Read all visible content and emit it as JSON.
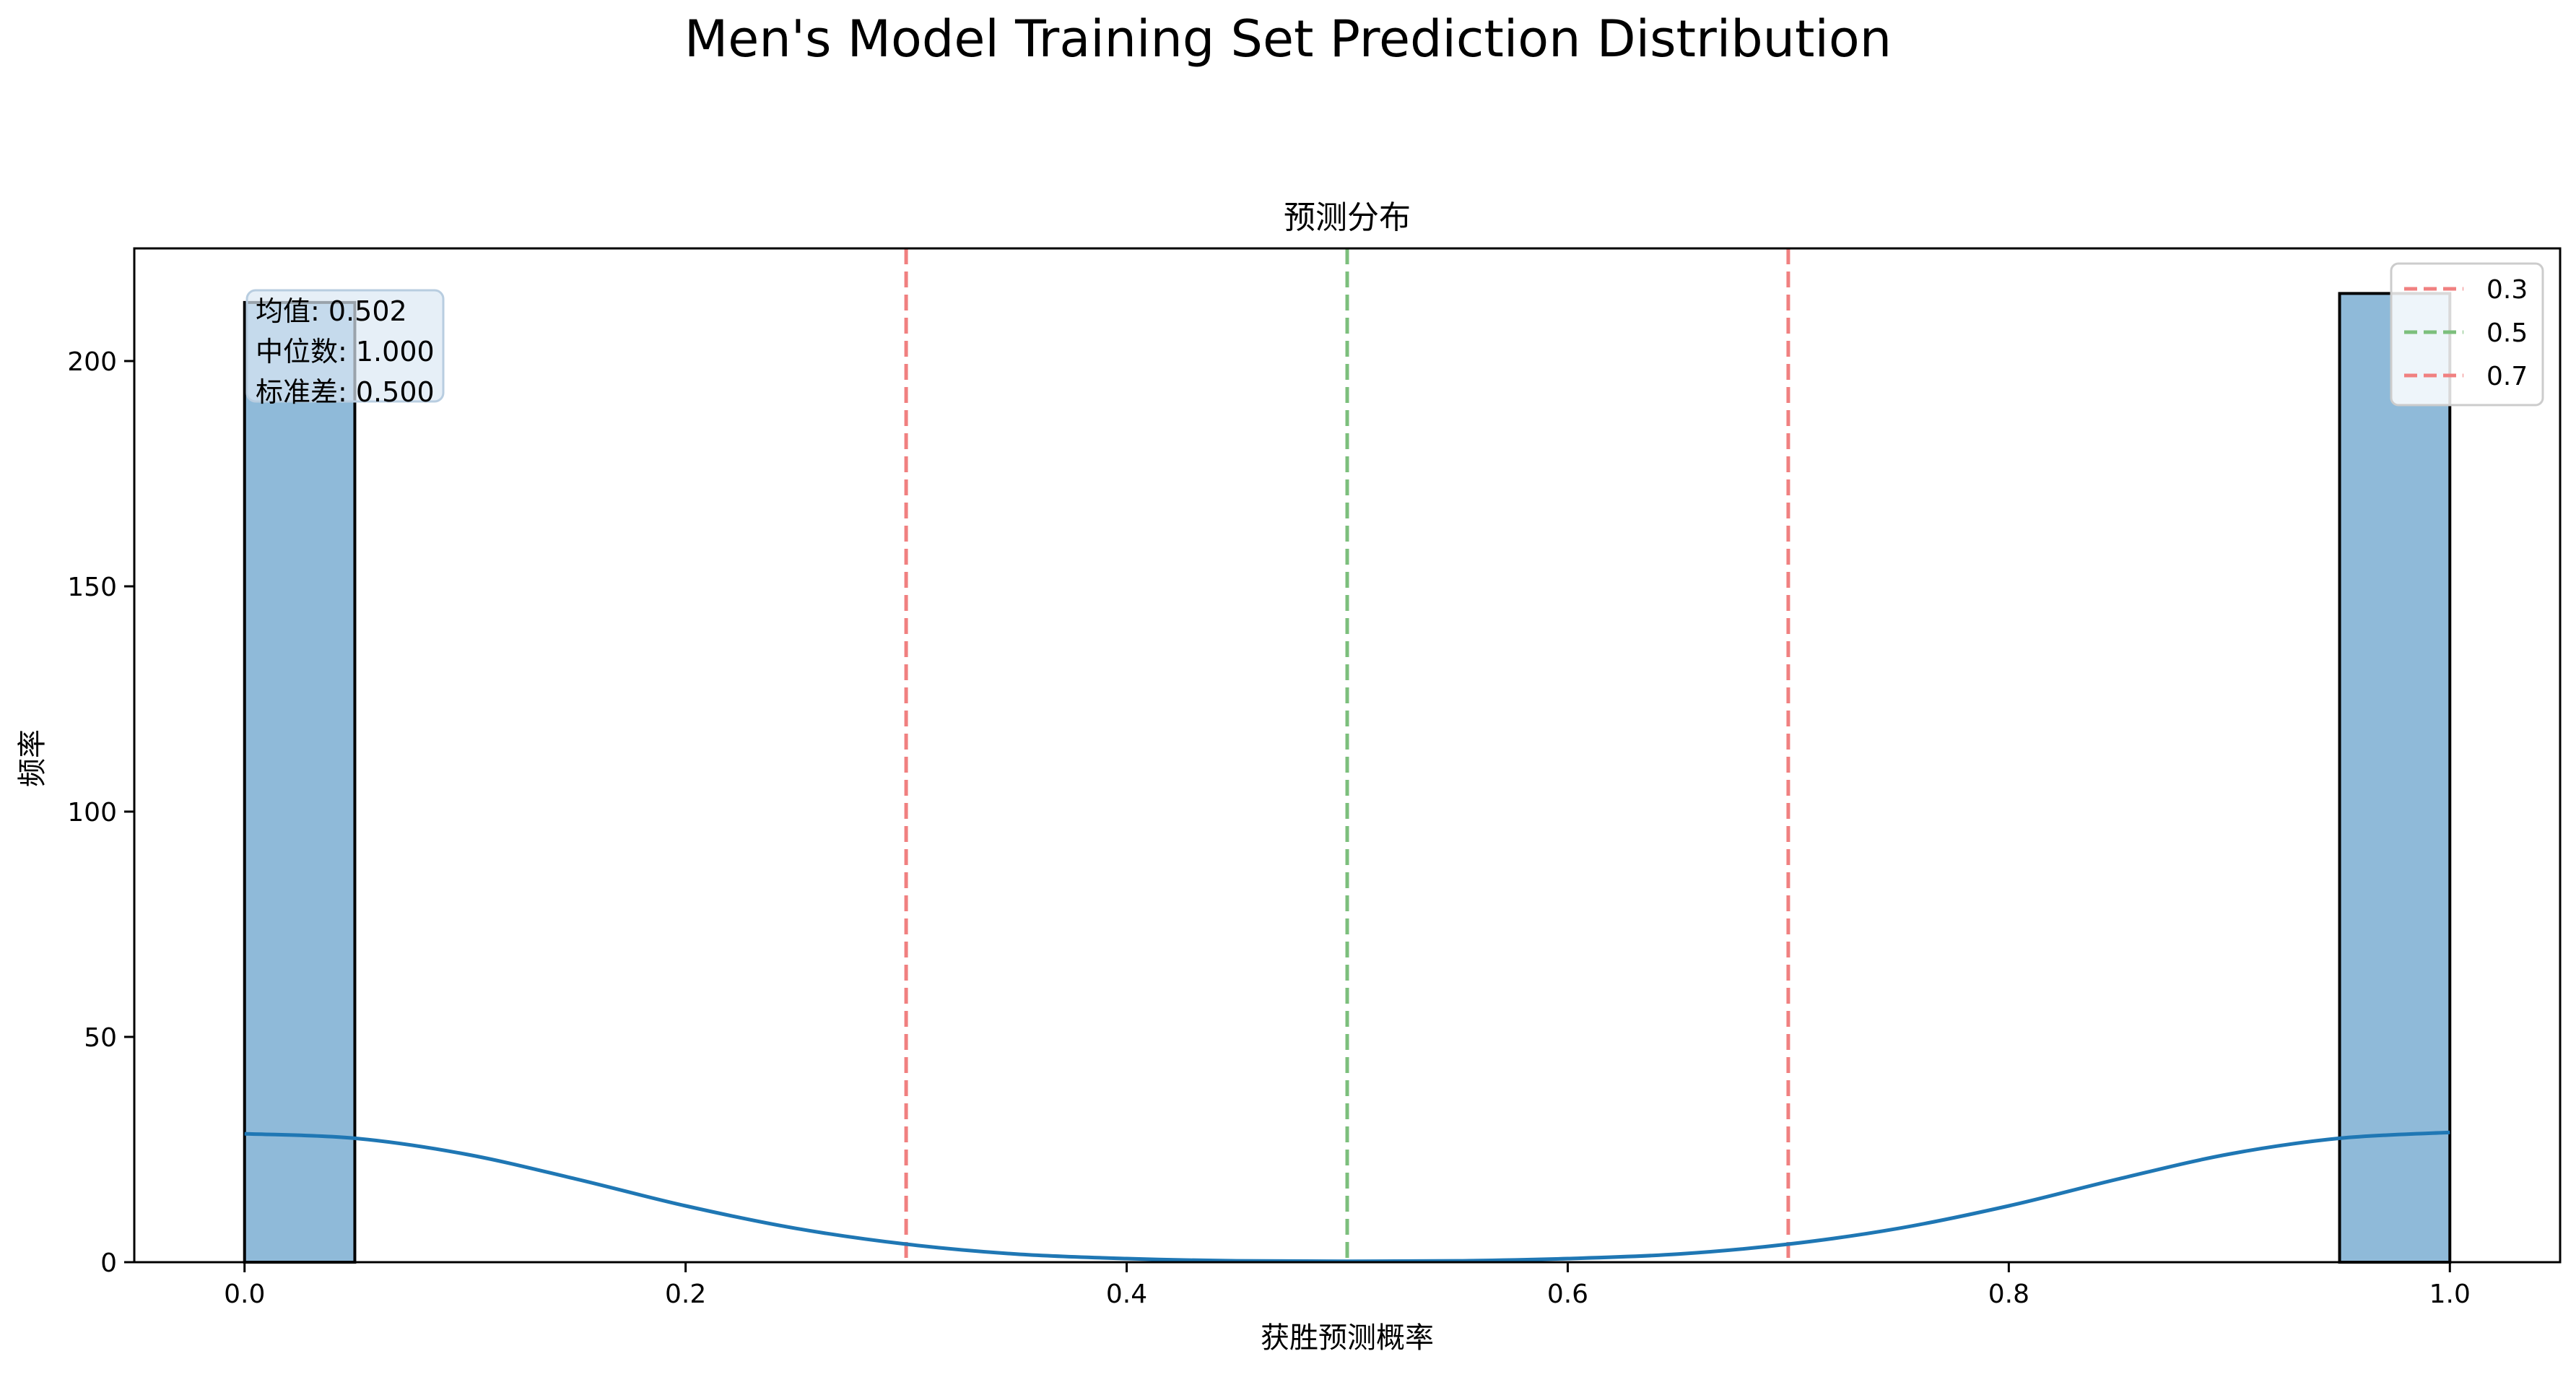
{
  "figure": {
    "suptitle": "Men's Model Training Set Prediction Distribution"
  },
  "chart_data": {
    "type": "bar",
    "title": "预测分布",
    "xlabel": "获胜预测概率",
    "ylabel": "频率",
    "xlim": [
      -0.05,
      1.05
    ],
    "ylim": [
      0,
      225
    ],
    "xticks": [
      0.0,
      0.2,
      0.4,
      0.6,
      0.8,
      1.0
    ],
    "xtick_labels": [
      "0.0",
      "0.2",
      "0.4",
      "0.6",
      "0.8",
      "1.0"
    ],
    "yticks": [
      0,
      50,
      100,
      150,
      200
    ],
    "ytick_labels": [
      "0",
      "50",
      "100",
      "150",
      "200"
    ],
    "bin_width": 0.05,
    "bins": [
      {
        "start": 0.0,
        "end": 0.05,
        "count": 213
      },
      {
        "start": 0.95,
        "end": 1.0,
        "count": 215
      }
    ],
    "bar_color": "#8fbad9",
    "bar_edge_color": "#000000",
    "kde": {
      "color": "#1f77b4",
      "points": [
        [
          0.0,
          28.5
        ],
        [
          0.05,
          27.5
        ],
        [
          0.1,
          24.0
        ],
        [
          0.15,
          18.5
        ],
        [
          0.2,
          12.5
        ],
        [
          0.25,
          7.5
        ],
        [
          0.3,
          4.0
        ],
        [
          0.35,
          1.8
        ],
        [
          0.4,
          0.8
        ],
        [
          0.45,
          0.3
        ],
        [
          0.5,
          0.2
        ],
        [
          0.55,
          0.3
        ],
        [
          0.6,
          0.8
        ],
        [
          0.65,
          1.8
        ],
        [
          0.7,
          4.0
        ],
        [
          0.75,
          7.5
        ],
        [
          0.8,
          12.5
        ],
        [
          0.85,
          18.5
        ],
        [
          0.9,
          24.0
        ],
        [
          0.95,
          27.5
        ],
        [
          1.0,
          28.8
        ]
      ]
    },
    "threshold_lines": [
      {
        "x": 0.3,
        "label": "0.3",
        "color": "#f08080"
      },
      {
        "x": 0.5,
        "label": "0.5",
        "color": "#7cbf7c"
      },
      {
        "x": 0.7,
        "label": "0.7",
        "color": "#f08080"
      }
    ],
    "legend_position": "top-right",
    "stats": {
      "mean": "均值: 0.502",
      "median": "中位数: 1.000",
      "std": "标准差: 0.500"
    },
    "grid": false
  }
}
